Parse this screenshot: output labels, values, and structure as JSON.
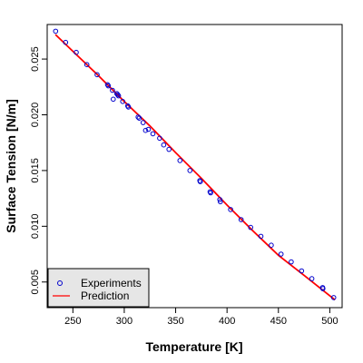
{
  "chart_data": {
    "type": "scatter",
    "xlabel": "Temperature [K]",
    "ylabel": "Surface Tension [N/m]",
    "xlim": [
      225,
      512
    ],
    "ylim": [
      0.0027,
      0.0281
    ],
    "xticks": [
      250,
      300,
      350,
      400,
      450,
      500
    ],
    "yticks": [
      0.005,
      0.01,
      0.015,
      0.02,
      0.025
    ],
    "ytick_labels": [
      "0.005",
      "0.010",
      "0.015",
      "0.020",
      "0.025"
    ],
    "grid": false,
    "legend": {
      "position": "bottom-left",
      "entries": [
        {
          "label": "Experiments",
          "marker": "o",
          "color": "#0000cc"
        },
        {
          "label": "Prediction",
          "line": true,
          "color": "#ff0000"
        }
      ]
    },
    "series": [
      {
        "name": "Experiments",
        "style": "points",
        "color": "#0000cc",
        "points": [
          [
            233.2,
            0.0275
          ],
          [
            242.9,
            0.0265
          ],
          [
            253.3,
            0.0256
          ],
          [
            263.6,
            0.0245
          ],
          [
            273.6,
            0.0236
          ],
          [
            283.7,
            0.0227
          ],
          [
            284.5,
            0.0226
          ],
          [
            288.5,
            0.0222
          ],
          [
            289.3,
            0.0214
          ],
          [
            292.8,
            0.0219
          ],
          [
            293.6,
            0.0218
          ],
          [
            294.4,
            0.0217
          ],
          [
            298.5,
            0.0212
          ],
          [
            303.4,
            0.0208
          ],
          [
            304.0,
            0.0207
          ],
          [
            313.5,
            0.0198
          ],
          [
            314.5,
            0.0197
          ],
          [
            318.3,
            0.0193
          ],
          [
            320.7,
            0.0186
          ],
          [
            323.5,
            0.0187
          ],
          [
            327.9,
            0.0183
          ],
          [
            334.4,
            0.0179
          ],
          [
            338.4,
            0.0173
          ],
          [
            343.5,
            0.0169
          ],
          [
            354.2,
            0.0159
          ],
          [
            363.9,
            0.015
          ],
          [
            373.5,
            0.0141
          ],
          [
            374.0,
            0.014
          ],
          [
            383.5,
            0.0131
          ],
          [
            384.0,
            0.013
          ],
          [
            393.5,
            0.0122
          ],
          [
            393.0,
            0.0124
          ],
          [
            403.5,
            0.0115
          ],
          [
            413.7,
            0.0106
          ],
          [
            423.0,
            0.0099
          ],
          [
            433.0,
            0.0091
          ],
          [
            443.0,
            0.0083
          ],
          [
            452.6,
            0.0075
          ],
          [
            462.5,
            0.0068
          ],
          [
            472.5,
            0.006
          ],
          [
            482.5,
            0.0053
          ],
          [
            493.0,
            0.0045
          ],
          [
            493.3,
            0.0044
          ],
          [
            503.8,
            0.0036
          ]
        ]
      },
      {
        "name": "Prediction",
        "style": "line",
        "color": "#ff0000",
        "points": [
          [
            233,
            0.0272
          ],
          [
            250,
            0.0257
          ],
          [
            275,
            0.0235
          ],
          [
            300,
            0.0212
          ],
          [
            325,
            0.019
          ],
          [
            350,
            0.0166
          ],
          [
            375,
            0.0143
          ],
          [
            400,
            0.0119
          ],
          [
            425,
            0.0096
          ],
          [
            450,
            0.0074
          ],
          [
            475,
            0.0056
          ],
          [
            490,
            0.0045
          ],
          [
            505,
            0.0034
          ]
        ]
      }
    ]
  }
}
